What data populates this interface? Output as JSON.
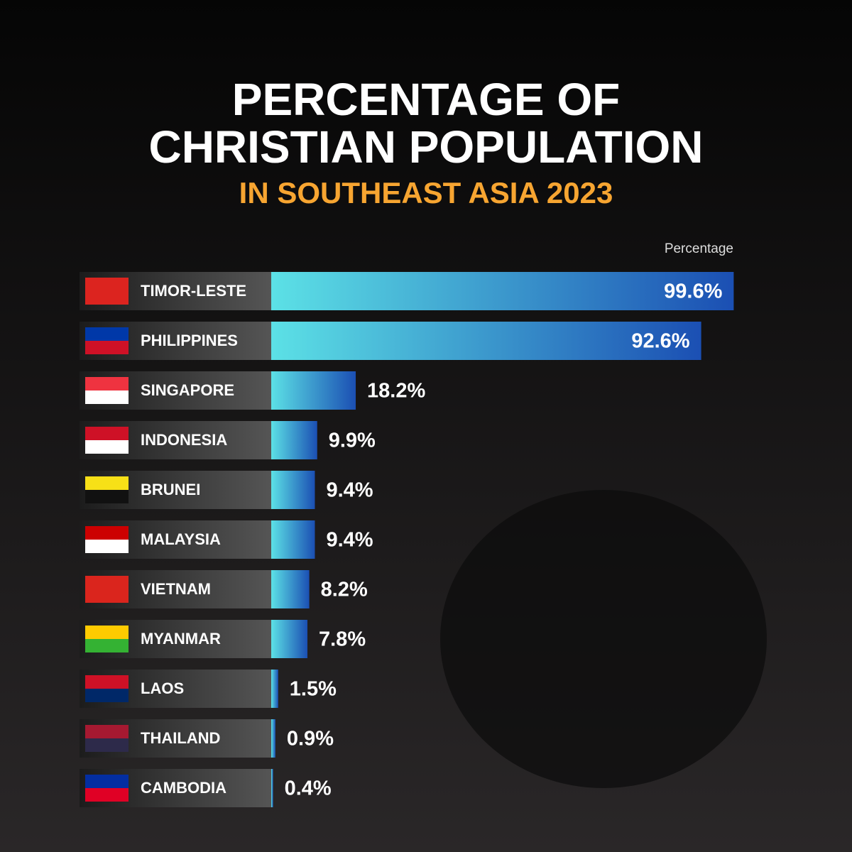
{
  "chart_data": {
    "type": "bar",
    "orientation": "horizontal",
    "title": [
      "PERCENTAGE OF",
      "CHRISTIAN POPULATION"
    ],
    "subtitle": "IN SOUTHEAST ASIA 2023",
    "x_label": "Percentage",
    "categories": [
      "TIMOR-LESTE",
      "PHILIPPINES",
      "SINGAPORE",
      "INDONESIA",
      "BRUNEI",
      "MALAYSIA",
      "VIETNAM",
      "MYANMAR",
      "LAOS",
      "THAILAND",
      "CAMBODIA"
    ],
    "values": [
      99.6,
      92.6,
      18.2,
      9.9,
      9.4,
      9.4,
      8.2,
      7.8,
      1.5,
      0.9,
      0.4
    ],
    "value_labels": [
      "99.6%",
      "92.6%",
      "18.2%",
      "9.9%",
      "9.4%",
      "9.4%",
      "8.2%",
      "7.8%",
      "1.5%",
      "0.9%",
      "0.4%"
    ],
    "xlim": [
      0,
      100
    ],
    "colors": {
      "bar_start": "#5ce1e6",
      "bar_end": "#1b4fb3",
      "title": "#ffffff",
      "subtitle": "#f7a531"
    }
  }
}
